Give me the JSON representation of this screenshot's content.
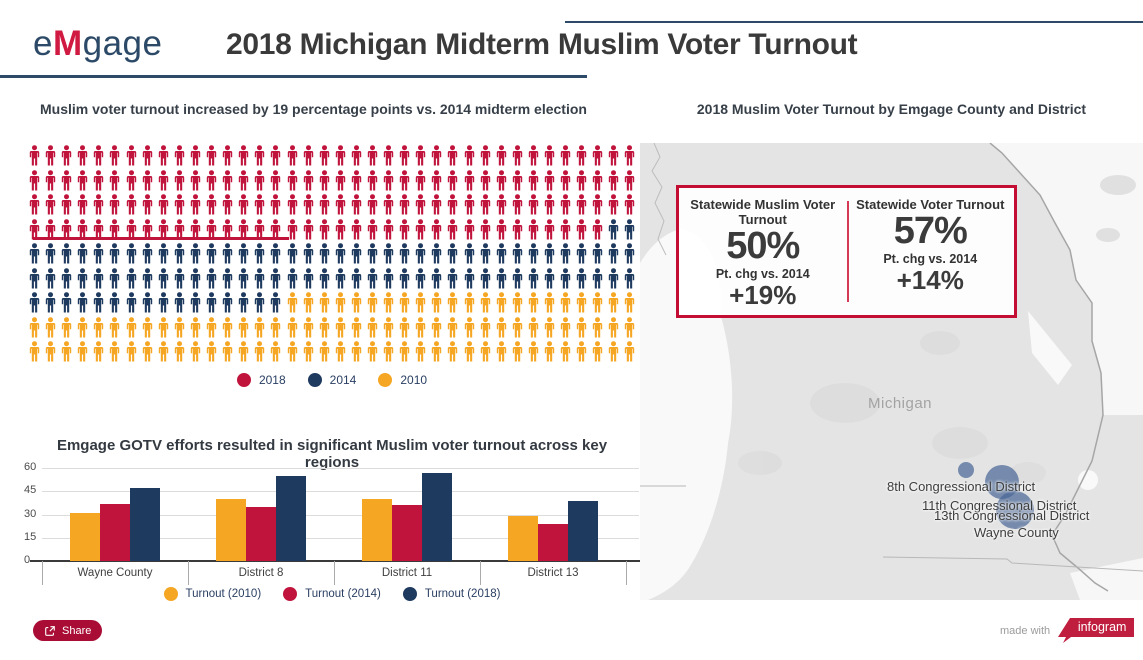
{
  "header": {
    "logo": {
      "part1": "e",
      "part2": "M",
      "part3": "gage"
    },
    "title": "2018 Michigan Midterm Muslim Voter Turnout"
  },
  "left": {
    "pictogram_title": "Muslim voter turnout increased by 19 percentage points vs. 2014 midterm election",
    "pictogram_legend": [
      {
        "label": "2018",
        "key": "red"
      },
      {
        "label": "2014",
        "key": "navy"
      },
      {
        "label": "2010",
        "key": "yellow"
      }
    ],
    "bar_title": "Emgage GOTV efforts resulted in significant Muslim voter turnout across key regions",
    "bar_legend": [
      {
        "label": "Turnout (2010)",
        "key": "yellow"
      },
      {
        "label": "Turnout (2014)",
        "key": "red"
      },
      {
        "label": "Turnout (2018)",
        "key": "navy"
      }
    ]
  },
  "right": {
    "map_title": "2018 Muslim Voter Turnout by Emgage County and District",
    "state_label": "Michigan",
    "map_labels": [
      "8th Congressional District",
      "11th Congressional District",
      "13th Congressional District",
      "Wayne County"
    ],
    "stat_box": {
      "left": {
        "title": "Statewide Muslim Voter Turnout",
        "value": "50%",
        "change_label": "Pt. chg vs. 2014",
        "change_value": "+19%"
      },
      "right": {
        "title": "Statewide Voter Turnout",
        "value": "57%",
        "change_label": "Pt. chg vs. 2014",
        "change_value": "+14%"
      }
    }
  },
  "footer": {
    "share_label": "Share",
    "made_with": "made with",
    "brand": "infogram"
  },
  "colors": {
    "red": "#c0143c",
    "navy": "#1f3a5f",
    "yellow": "#f5a623",
    "crimson_border": "#c30d33",
    "header_line": "#2d4a68",
    "bubble": "rgba(74,103,150,0.72)"
  },
  "chart_data": [
    {
      "type": "pictogram",
      "title": "Muslim voter turnout increased by 19 percentage points vs. 2014 midterm election",
      "unit": "person-icon",
      "icons_per_row": 38,
      "rows": [
        [
          {
            "key": "red",
            "count": 38
          }
        ],
        [
          {
            "key": "red",
            "count": 38
          }
        ],
        [
          {
            "key": "red",
            "count": 38
          }
        ],
        [
          {
            "key": "red",
            "count": 36
          },
          {
            "key": "navy",
            "count": 2
          }
        ],
        [
          {
            "key": "navy",
            "count": 38
          }
        ],
        [
          {
            "key": "navy",
            "count": 38
          }
        ],
        [
          {
            "key": "navy",
            "count": 16
          },
          {
            "key": "yellow",
            "count": 22
          }
        ],
        [
          {
            "key": "yellow",
            "count": 38
          }
        ],
        [
          {
            "key": "yellow",
            "count": 38
          }
        ]
      ],
      "icon_totals": {
        "2018": 150,
        "2014": 94,
        "2010": 98
      },
      "legend": [
        "2018",
        "2014",
        "2010"
      ],
      "underline": {
        "row_index": 3,
        "icon_span": 16
      }
    },
    {
      "type": "bar",
      "title": "Emgage GOTV efforts resulted in significant Muslim voter turnout across key regions",
      "categories": [
        "Wayne County",
        "District 8",
        "District 11",
        "District 13"
      ],
      "series": [
        {
          "name": "Turnout (2010)",
          "key": "yellow",
          "values": [
            31,
            40,
            40,
            29
          ]
        },
        {
          "name": "Turnout (2014)",
          "key": "red",
          "values": [
            37,
            35,
            36,
            24
          ]
        },
        {
          "name": "Turnout (2018)",
          "key": "navy",
          "values": [
            47,
            55,
            57,
            39
          ]
        }
      ],
      "xlabel": "",
      "ylabel": "",
      "ylim": [
        0,
        60
      ],
      "yticks": [
        0,
        15,
        30,
        45,
        60
      ],
      "grid": true,
      "legend_position": "bottom"
    },
    {
      "type": "scatter",
      "subtype": "map-bubbles",
      "title": "2018 Muslim Voter Turnout by Emgage County and District",
      "region": "Michigan",
      "points": [
        {
          "label": "8th Congressional District",
          "bubble": "small"
        },
        {
          "label": "11th Congressional District",
          "bubble": "large"
        },
        {
          "label": "13th Congressional District",
          "bubble": "largest"
        },
        {
          "label": "Wayne County",
          "bubble": "largest"
        }
      ],
      "stats": {
        "statewide_muslim_voter_turnout": "50%",
        "statewide_muslim_pt_chg_vs_2014": "+19%",
        "statewide_voter_turnout": "57%",
        "statewide_pt_chg_vs_2014": "+14%"
      }
    }
  ]
}
